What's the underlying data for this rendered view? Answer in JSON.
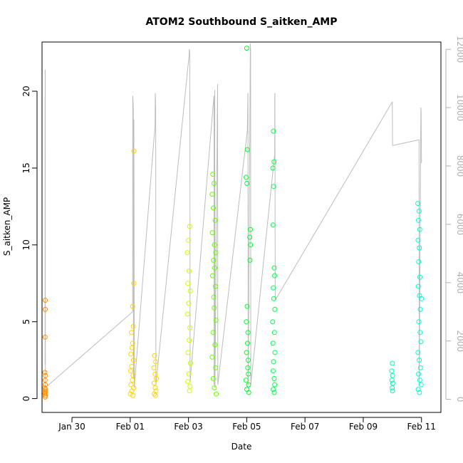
{
  "chart_data": {
    "type": "scatter",
    "title": "ATOM2 Southbound S_aitken_AMP",
    "xlabel": "Date",
    "ylabel": "S_aitken_AMP",
    "ylim": [
      -0.9,
      23.2
    ],
    "y_ticks": [
      0,
      5,
      10,
      15,
      20
    ],
    "y_right_lim": [
      -450,
      12250
    ],
    "y_right_ticks": [
      0,
      2000,
      4000,
      6000,
      8000,
      10000,
      12000
    ],
    "x_range_days": [
      "2025-01-28T23:20",
      "2025-02-11T16:00"
    ],
    "x_ticks": [
      {
        "date": "2025-01-30",
        "label": "Jan 30"
      },
      {
        "date": "2025-02-01",
        "label": "Feb 01"
      },
      {
        "date": "2025-02-03",
        "label": "Feb 03"
      },
      {
        "date": "2025-02-05",
        "label": "Feb 05"
      },
      {
        "date": "2025-02-07",
        "label": "Feb 07"
      },
      {
        "date": "2025-02-09",
        "label": "Feb 09"
      },
      {
        "date": "2025-02-11",
        "label": "Feb 11"
      }
    ],
    "grid": false,
    "point_style": "open circle",
    "color_scale": [
      "#ff8c00",
      "#ffd400",
      "#e6ff00",
      "#7fff00",
      "#00ff00",
      "#00ffa0",
      "#00ffd0"
    ],
    "series": [
      {
        "color": "#ff8c00",
        "points": [
          {
            "x": "2025-01-29T02:00",
            "y": 6.4
          },
          {
            "x": "2025-01-29T02:00",
            "y": 5.8
          },
          {
            "x": "2025-01-29T01:50",
            "y": 4.0
          },
          {
            "x": "2025-01-29T01:40",
            "y": 1.7
          },
          {
            "x": "2025-01-29T02:10",
            "y": 1.5
          },
          {
            "x": "2025-01-29T01:50",
            "y": 1.2
          },
          {
            "x": "2025-01-29T02:00",
            "y": 0.9
          },
          {
            "x": "2025-01-29T01:40",
            "y": 0.7
          },
          {
            "x": "2025-01-29T02:10",
            "y": 0.6
          },
          {
            "x": "2025-01-29T01:50",
            "y": 0.5
          },
          {
            "x": "2025-01-29T02:00",
            "y": 0.4
          },
          {
            "x": "2025-01-29T01:40",
            "y": 0.3
          },
          {
            "x": "2025-01-29T02:10",
            "y": 0.2
          },
          {
            "x": "2025-01-29T01:50",
            "y": 0.1
          }
        ]
      },
      {
        "color": "#ffd400",
        "points": [
          {
            "x": "2025-02-01T03:00",
            "y": 16.1
          },
          {
            "x": "2025-02-01T03:00",
            "y": 7.5
          },
          {
            "x": "2025-02-01T02:00",
            "y": 6.0
          },
          {
            "x": "2025-02-01T02:30",
            "y": 4.7
          },
          {
            "x": "2025-02-01T01:00",
            "y": 4.3
          },
          {
            "x": "2025-02-01T02:00",
            "y": 3.6
          },
          {
            "x": "2025-02-01T01:30",
            "y": 3.3
          },
          {
            "x": "2025-02-01T00:30",
            "y": 2.9
          },
          {
            "x": "2025-02-01T02:40",
            "y": 2.5
          },
          {
            "x": "2025-02-01T01:10",
            "y": 2.1
          },
          {
            "x": "2025-02-01T00:20",
            "y": 1.8
          },
          {
            "x": "2025-02-01T02:20",
            "y": 1.5
          },
          {
            "x": "2025-02-01T01:50",
            "y": 1.2
          },
          {
            "x": "2025-02-01T00:40",
            "y": 0.9
          },
          {
            "x": "2025-02-01T02:50",
            "y": 0.7
          },
          {
            "x": "2025-02-01T01:20",
            "y": 0.5
          },
          {
            "x": "2025-02-01T00:10",
            "y": 0.3
          },
          {
            "x": "2025-02-01T02:10",
            "y": 0.2
          },
          {
            "x": "2025-02-01T20:00",
            "y": 2.8
          },
          {
            "x": "2025-02-01T21:00",
            "y": 2.4
          },
          {
            "x": "2025-02-01T19:30",
            "y": 2.0
          },
          {
            "x": "2025-02-01T20:30",
            "y": 1.6
          },
          {
            "x": "2025-02-01T21:30",
            "y": 1.3
          },
          {
            "x": "2025-02-01T19:40",
            "y": 1.0
          },
          {
            "x": "2025-02-01T20:40",
            "y": 0.7
          },
          {
            "x": "2025-02-01T21:10",
            "y": 0.5
          },
          {
            "x": "2025-02-01T19:50",
            "y": 0.3
          },
          {
            "x": "2025-02-01T20:50",
            "y": 0.2
          }
        ]
      },
      {
        "color": "#c8ff00",
        "points": [
          {
            "x": "2025-02-03T01:00",
            "y": 11.2
          },
          {
            "x": "2025-02-03T00:00",
            "y": 10.3
          },
          {
            "x": "2025-02-02T23:00",
            "y": 9.5
          },
          {
            "x": "2025-02-03T00:30",
            "y": 8.3
          },
          {
            "x": "2025-02-02T23:30",
            "y": 7.5
          },
          {
            "x": "2025-02-03T01:30",
            "y": 7.0
          },
          {
            "x": "2025-02-03T00:10",
            "y": 6.2
          },
          {
            "x": "2025-02-02T23:10",
            "y": 5.5
          },
          {
            "x": "2025-02-03T01:10",
            "y": 4.6
          },
          {
            "x": "2025-02-03T00:40",
            "y": 3.8
          },
          {
            "x": "2025-02-02T23:40",
            "y": 3.0
          },
          {
            "x": "2025-02-03T01:40",
            "y": 2.3
          },
          {
            "x": "2025-02-03T00:20",
            "y": 1.6
          },
          {
            "x": "2025-02-02T23:20",
            "y": 1.1
          },
          {
            "x": "2025-02-03T01:20",
            "y": 0.8
          },
          {
            "x": "2025-02-03T00:50",
            "y": 0.5
          }
        ]
      },
      {
        "color": "#66ff00",
        "points": [
          {
            "x": "2025-02-03T20:00",
            "y": 14.6
          },
          {
            "x": "2025-02-03T21:00",
            "y": 14.0
          },
          {
            "x": "2025-02-03T19:30",
            "y": 13.3
          },
          {
            "x": "2025-02-03T20:30",
            "y": 12.4
          },
          {
            "x": "2025-02-03T22:00",
            "y": 11.6
          },
          {
            "x": "2025-02-03T19:40",
            "y": 10.8
          },
          {
            "x": "2025-02-03T21:30",
            "y": 10.0
          },
          {
            "x": "2025-02-03T22:30",
            "y": 9.5
          },
          {
            "x": "2025-02-03T20:40",
            "y": 9.0
          },
          {
            "x": "2025-02-03T21:40",
            "y": 8.5
          },
          {
            "x": "2025-02-03T19:50",
            "y": 8.0
          },
          {
            "x": "2025-02-03T22:10",
            "y": 7.3
          },
          {
            "x": "2025-02-03T20:50",
            "y": 6.6
          },
          {
            "x": "2025-02-03T21:10",
            "y": 5.9
          },
          {
            "x": "2025-02-03T22:40",
            "y": 5.1
          },
          {
            "x": "2025-02-03T20:10",
            "y": 4.3
          },
          {
            "x": "2025-02-03T21:50",
            "y": 3.5
          },
          {
            "x": "2025-02-03T19:30",
            "y": 2.7
          },
          {
            "x": "2025-02-03T22:20",
            "y": 2.0
          },
          {
            "x": "2025-02-03T20:20",
            "y": 1.3
          },
          {
            "x": "2025-02-03T21:20",
            "y": 0.7
          },
          {
            "x": "2025-02-03T22:50",
            "y": 0.3
          }
        ]
      },
      {
        "color": "#00ff30",
        "points": [
          {
            "x": "2025-02-05T00:00",
            "y": 22.8
          },
          {
            "x": "2025-02-05T00:30",
            "y": 16.2
          },
          {
            "x": "2025-02-04T23:30",
            "y": 14.4
          },
          {
            "x": "2025-02-05T00:10",
            "y": 14.0
          },
          {
            "x": "2025-02-05T03:00",
            "y": 11.0
          },
          {
            "x": "2025-02-05T02:30",
            "y": 10.5
          },
          {
            "x": "2025-02-05T03:10",
            "y": 10.0
          },
          {
            "x": "2025-02-05T02:40",
            "y": 9.0
          },
          {
            "x": "2025-02-05T00:20",
            "y": 6.0
          },
          {
            "x": "2025-02-04T23:40",
            "y": 5.0
          },
          {
            "x": "2025-02-05T01:00",
            "y": 4.3
          },
          {
            "x": "2025-02-05T00:40",
            "y": 3.6
          },
          {
            "x": "2025-02-04T23:50",
            "y": 3.0
          },
          {
            "x": "2025-02-05T01:10",
            "y": 2.5
          },
          {
            "x": "2025-02-05T00:50",
            "y": 2.0
          },
          {
            "x": "2025-02-05T01:20",
            "y": 1.6
          },
          {
            "x": "2025-02-04T23:20",
            "y": 1.2
          },
          {
            "x": "2025-02-05T01:30",
            "y": 0.9
          },
          {
            "x": "2025-02-05T00:05",
            "y": 0.6
          },
          {
            "x": "2025-02-05T01:40",
            "y": 0.4
          }
        ]
      },
      {
        "color": "#00ff50",
        "points": [
          {
            "x": "2025-02-05T22:00",
            "y": 17.4
          },
          {
            "x": "2025-02-05T22:30",
            "y": 15.4
          },
          {
            "x": "2025-02-05T21:30",
            "y": 15.0
          },
          {
            "x": "2025-02-05T22:10",
            "y": 13.8
          },
          {
            "x": "2025-02-05T21:40",
            "y": 11.3
          },
          {
            "x": "2025-02-05T22:40",
            "y": 8.5
          },
          {
            "x": "2025-02-05T23:00",
            "y": 8.0
          },
          {
            "x": "2025-02-05T21:50",
            "y": 7.2
          },
          {
            "x": "2025-02-05T22:20",
            "y": 6.5
          },
          {
            "x": "2025-02-05T23:10",
            "y": 5.8
          },
          {
            "x": "2025-02-05T21:20",
            "y": 5.0
          },
          {
            "x": "2025-02-05T22:50",
            "y": 4.3
          },
          {
            "x": "2025-02-05T21:35",
            "y": 3.6
          },
          {
            "x": "2025-02-05T23:20",
            "y": 3.0
          },
          {
            "x": "2025-02-05T22:05",
            "y": 2.4
          },
          {
            "x": "2025-02-05T21:45",
            "y": 1.8
          },
          {
            "x": "2025-02-05T22:35",
            "y": 1.3
          },
          {
            "x": "2025-02-05T23:05",
            "y": 0.9
          },
          {
            "x": "2025-02-05T21:55",
            "y": 0.6
          },
          {
            "x": "2025-02-05T22:45",
            "y": 0.4
          }
        ]
      },
      {
        "color": "#00ffb0",
        "points": [
          {
            "x": "2025-02-10T00:00",
            "y": 2.3
          },
          {
            "x": "2025-02-09T23:30",
            "y": 1.8
          },
          {
            "x": "2025-02-10T00:10",
            "y": 1.5
          },
          {
            "x": "2025-02-09T23:40",
            "y": 1.2
          },
          {
            "x": "2025-02-10T00:20",
            "y": 1.0
          },
          {
            "x": "2025-02-09T23:50",
            "y": 0.7
          },
          {
            "x": "2025-02-10T00:05",
            "y": 0.5
          }
        ]
      },
      {
        "color": "#00ffd0",
        "points": [
          {
            "x": "2025-02-10T21:00",
            "y": 12.7
          },
          {
            "x": "2025-02-10T22:00",
            "y": 12.2
          },
          {
            "x": "2025-02-10T21:30",
            "y": 11.6
          },
          {
            "x": "2025-02-10T22:30",
            "y": 11.0
          },
          {
            "x": "2025-02-10T21:10",
            "y": 10.3
          },
          {
            "x": "2025-02-10T22:10",
            "y": 9.8
          },
          {
            "x": "2025-02-10T21:40",
            "y": 8.9
          },
          {
            "x": "2025-02-10T22:40",
            "y": 7.9
          },
          {
            "x": "2025-02-10T21:20",
            "y": 7.3
          },
          {
            "x": "2025-02-10T22:20",
            "y": 6.7
          },
          {
            "x": "2025-02-11T00:00",
            "y": 6.5
          },
          {
            "x": "2025-02-10T23:00",
            "y": 5.8
          },
          {
            "x": "2025-02-10T21:50",
            "y": 5.0
          },
          {
            "x": "2025-02-10T22:50",
            "y": 4.3
          },
          {
            "x": "2025-02-10T23:30",
            "y": 3.7
          },
          {
            "x": "2025-02-10T21:05",
            "y": 3.0
          },
          {
            "x": "2025-02-10T22:05",
            "y": 2.5
          },
          {
            "x": "2025-02-10T23:10",
            "y": 2.0
          },
          {
            "x": "2025-02-10T21:35",
            "y": 1.6
          },
          {
            "x": "2025-02-10T22:35",
            "y": 1.2
          },
          {
            "x": "2025-02-10T23:40",
            "y": 0.9
          },
          {
            "x": "2025-02-10T21:15",
            "y": 0.6
          },
          {
            "x": "2025-02-10T22:15",
            "y": 0.4
          }
        ]
      }
    ],
    "line_series": {
      "color": "#bdbdbd",
      "axis": "right",
      "points": [
        {
          "x": "2025-01-29T01:50",
          "y": 1200
        },
        {
          "x": "2025-01-29T01:55",
          "y": 11300
        },
        {
          "x": "2025-01-29T02:00",
          "y": 11300
        },
        {
          "x": "2025-01-29T02:05",
          "y": 400
        },
        {
          "x": "2025-02-01T02:00",
          "y": 3000
        },
        {
          "x": "2025-02-01T02:05",
          "y": 10400
        },
        {
          "x": "2025-02-01T02:30",
          "y": 10100
        },
        {
          "x": "2025-02-01T02:35",
          "y": 9700
        },
        {
          "x": "2025-02-01T02:40",
          "y": 700
        },
        {
          "x": "2025-02-01T03:00",
          "y": 9600
        },
        {
          "x": "2025-02-01T03:10",
          "y": 6400
        },
        {
          "x": "2025-02-01T03:20",
          "y": 400
        },
        {
          "x": "2025-02-01T20:30",
          "y": 9400
        },
        {
          "x": "2025-02-01T20:40",
          "y": 10500
        },
        {
          "x": "2025-02-01T21:00",
          "y": 9900
        },
        {
          "x": "2025-02-01T21:10",
          "y": 500
        },
        {
          "x": "2025-02-03T00:30",
          "y": 11800
        },
        {
          "x": "2025-02-03T00:40",
          "y": 12000
        },
        {
          "x": "2025-02-03T01:00",
          "y": 11900
        },
        {
          "x": "2025-02-03T01:10",
          "y": 11000
        },
        {
          "x": "2025-02-03T01:20",
          "y": 600
        },
        {
          "x": "2025-02-03T21:00",
          "y": 10400
        },
        {
          "x": "2025-02-03T21:10",
          "y": 500
        },
        {
          "x": "2025-02-03T21:40",
          "y": 10600
        },
        {
          "x": "2025-02-03T21:50",
          "y": 400
        },
        {
          "x": "2025-02-04T00:00",
          "y": 10800
        },
        {
          "x": "2025-02-04T00:10",
          "y": 500
        },
        {
          "x": "2025-02-05T00:30",
          "y": 9200
        },
        {
          "x": "2025-02-05T01:00",
          "y": 10500
        },
        {
          "x": "2025-02-05T01:10",
          "y": 500
        },
        {
          "x": "2025-02-05T03:00",
          "y": 12200
        },
        {
          "x": "2025-02-05T03:10",
          "y": 12000
        },
        {
          "x": "2025-02-05T03:20",
          "y": 500
        },
        {
          "x": "2025-02-05T23:00",
          "y": 8400
        },
        {
          "x": "2025-02-05T23:10",
          "y": 10500
        },
        {
          "x": "2025-02-05T23:30",
          "y": 3400
        },
        {
          "x": "2025-02-10T00:00",
          "y": 10200
        },
        {
          "x": "2025-02-10T00:10",
          "y": 8700
        },
        {
          "x": "2025-02-10T22:00",
          "y": 8900
        },
        {
          "x": "2025-02-10T22:10",
          "y": 500
        },
        {
          "x": "2025-02-10T23:30",
          "y": 10000
        },
        {
          "x": "2025-02-10T23:40",
          "y": 9900
        },
        {
          "x": "2025-02-11T00:00",
          "y": 8100
        }
      ]
    }
  }
}
